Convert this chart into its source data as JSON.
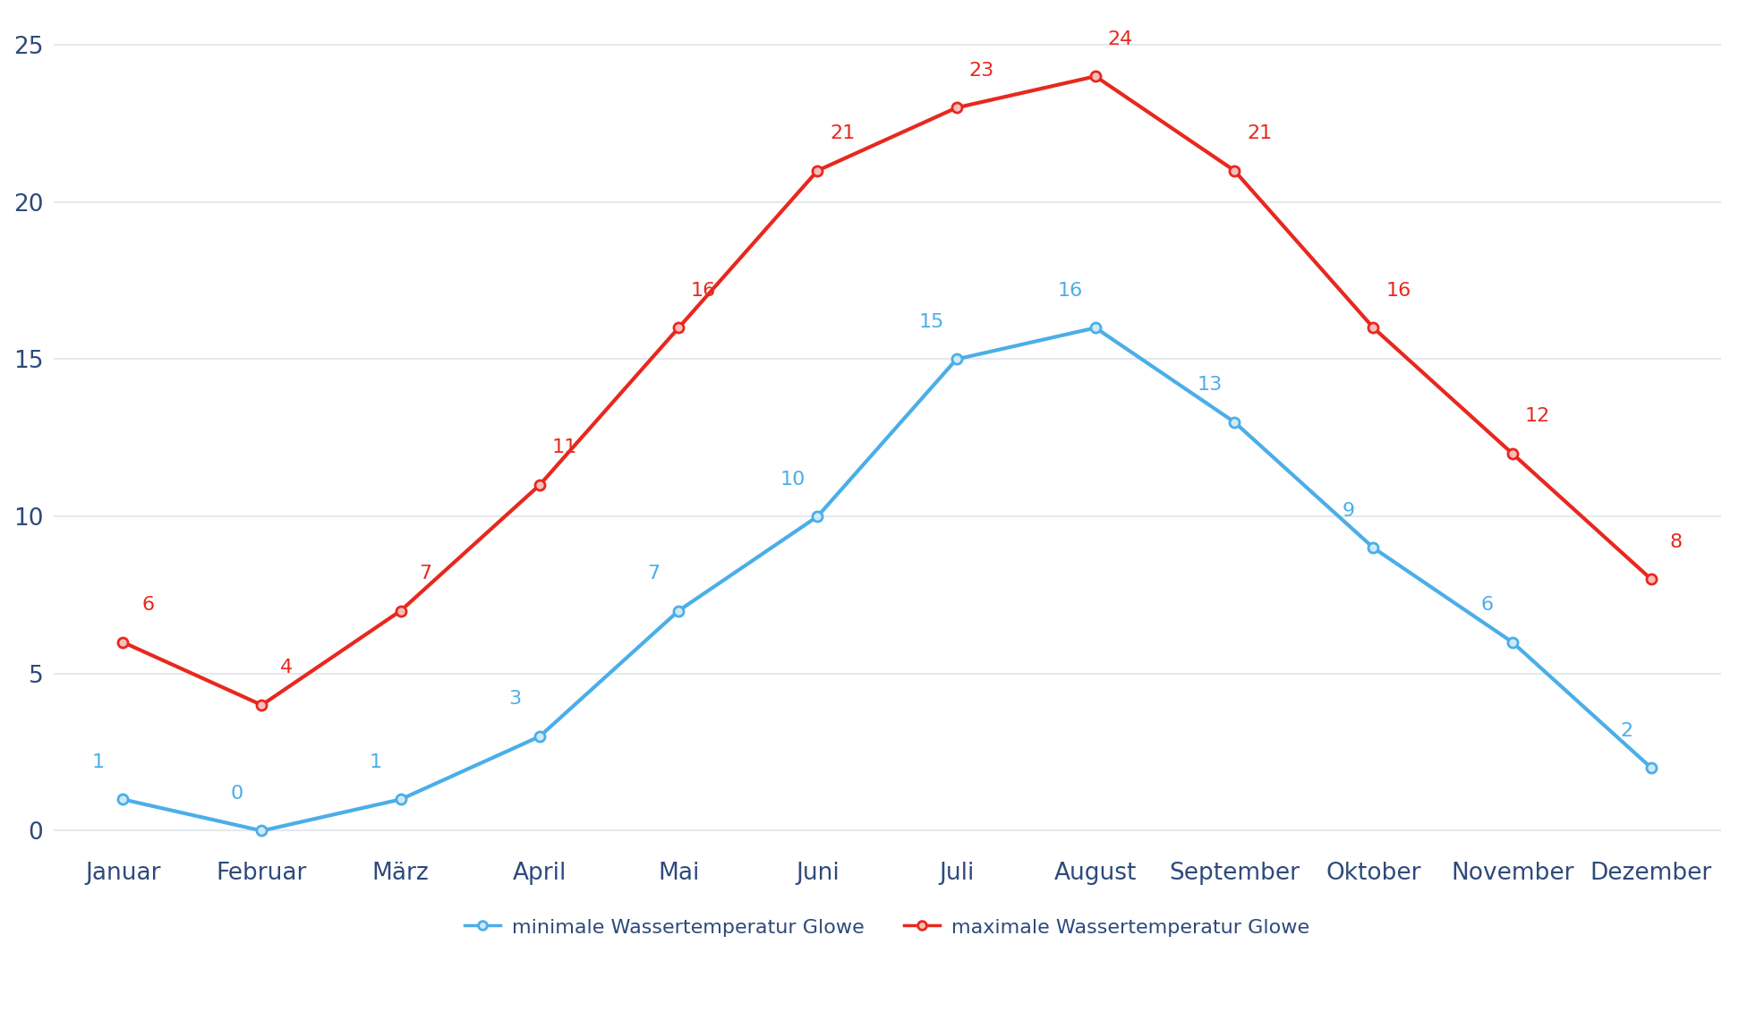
{
  "months": [
    "Januar",
    "Februar",
    "März",
    "April",
    "Mai",
    "Juni",
    "Juli",
    "August",
    "September",
    "Oktober",
    "November",
    "Dezember"
  ],
  "min_temps": [
    1,
    0,
    1,
    3,
    7,
    10,
    15,
    16,
    13,
    9,
    6,
    2
  ],
  "max_temps": [
    6,
    4,
    7,
    11,
    16,
    21,
    23,
    24,
    21,
    16,
    12,
    8
  ],
  "min_color": "#4baee8",
  "max_color": "#e8281e",
  "min_label": "minimale Wassertemperatur Glowe",
  "max_label": "maximale Wassertemperatur Glowe",
  "ylim": [
    -0.5,
    26
  ],
  "yticks": [
    0,
    5,
    10,
    15,
    20,
    25
  ],
  "background_color": "#ffffff",
  "grid_color": "#e0e5ea",
  "line_width": 3.0,
  "marker_size": 8,
  "tick_fontsize": 19,
  "legend_fontsize": 16,
  "annotation_fontsize": 16,
  "tick_color": "#2e4a7a",
  "legend_text_color": "#2e4a7a"
}
